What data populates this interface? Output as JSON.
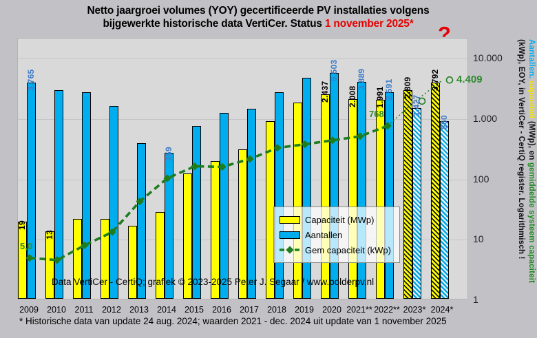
{
  "title": {
    "line1": "Netto jaargroei volumes (YOY) gecertificeerde PV installaties volgens",
    "line2_black": "bijgewerkte historische data VertiCer. Status ",
    "line2_red": "1 november 2025*"
  },
  "question_mark": "?",
  "watermark": "Data VertiCer - CertiQ; grafiek © 2023-2025  Peter J. Segaar / www.polderpv.nl",
  "footnote": "* Historische data van update 24 aug. 2024; waarden 2021 - dec. 2024 uit update van 1 november 2025",
  "right_axis_title": {
    "part_blue": "Aantallen. ",
    "part_yellow": "capaciteit ",
    "part_black": "(MWp), en ",
    "part_green": "gemiddelde systeem capaciteit",
    "line2": "(kWp), EOY, in VertiCer - CertiQ register. Logarithmisch !"
  },
  "legend": {
    "items": [
      {
        "label": "Capaciteit (MWp)",
        "swatch": "yellow-bar"
      },
      {
        "label": "Aantallen",
        "swatch": "blue-bar"
      },
      {
        "label": "Gem capaciteit (kWp)",
        "swatch": "green-dash-line"
      }
    ]
  },
  "colors": {
    "capacity_bar": "#ffff00",
    "count_bar": "#00aeef",
    "avg_line": "#1e7d1e",
    "count_label": "#3d7cc9",
    "green_label": "#2e8b2e",
    "title_red": "#e60000"
  },
  "chart_data": {
    "type": "bar",
    "log_scale": true,
    "ylim": [
      1,
      10000
    ],
    "y_tick_labels": [
      "10.000",
      "1.000",
      "100",
      "10",
      "1"
    ],
    "y_tick_values": [
      10000,
      1000,
      100,
      10,
      1
    ],
    "categories": [
      "2009",
      "2010",
      "2011",
      "2012",
      "2013",
      "2014",
      "2015",
      "2016",
      "2017",
      "2018",
      "2019",
      "2020",
      "2021**",
      "2022**",
      "2023*",
      "2024*"
    ],
    "hatched_from_index": 14,
    "series": [
      {
        "name": "Capaciteit (MWp)",
        "kind": "bar",
        "values": [
          19,
          13,
          21,
          21,
          16,
          27,
          120,
          190,
          300,
          880,
          1750,
          2437,
          2008,
          1991,
          2809,
          3792
        ],
        "data_labels": [
          "19",
          "13",
          "",
          "",
          "",
          "",
          "",
          "",
          "",
          "",
          "",
          "2.437",
          "2.008",
          "1.991",
          "2.809",
          "3.792"
        ]
      },
      {
        "name": "Aantallen",
        "kind": "bar",
        "values": [
          3765,
          2850,
          2600,
          1570,
          372,
          259,
          730,
          1180,
          1380,
          2650,
          4600,
          5503,
          3889,
          2591,
          1427,
          860
        ],
        "data_labels": [
          "3.765",
          "",
          "",
          "",
          "",
          "259",
          "",
          "",
          "",
          "",
          "",
          "5.503",
          "3.889",
          "2.591",
          "1.427",
          "860"
        ]
      },
      {
        "name": "Gem capaciteit (kWp)",
        "kind": "line",
        "estimated_from_index": 14,
        "values": [
          5.0,
          4.6,
          8.1,
          13.4,
          43,
          104,
          164,
          161,
          217,
          332,
          380,
          443,
          516,
          768,
          1969,
          4409
        ],
        "data_labels": [
          "5,0",
          "",
          "",
          "",
          "",
          "",
          "",
          "",
          "",
          "",
          "",
          "",
          "",
          "768",
          "",
          "4.409"
        ]
      }
    ]
  }
}
